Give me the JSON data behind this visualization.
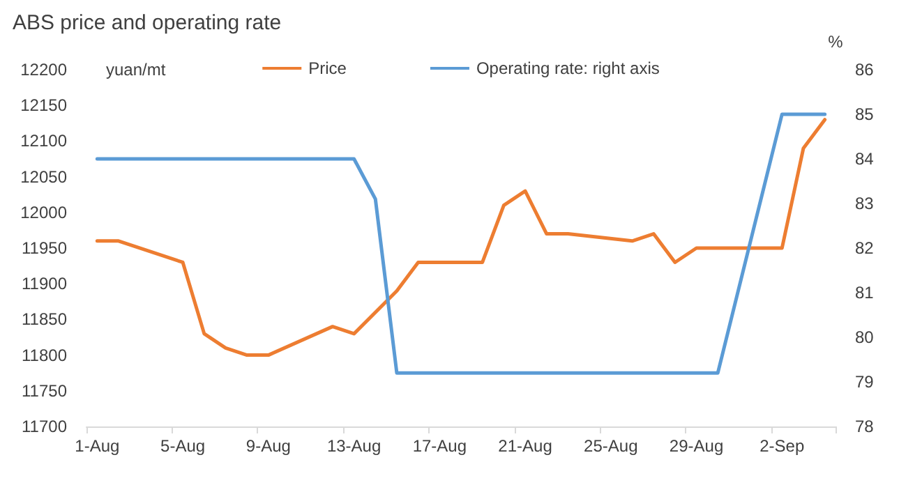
{
  "chart_data": {
    "type": "line",
    "title": "ABS price and operating rate",
    "ylabel": "yuan/mt",
    "y2label": "%",
    "categories": [
      "1-Aug",
      null,
      null,
      null,
      "5-Aug",
      null,
      null,
      null,
      "9-Aug",
      null,
      null,
      null,
      "13-Aug",
      null,
      null,
      null,
      "17-Aug",
      null,
      null,
      null,
      "21-Aug",
      null,
      null,
      null,
      "25-Aug",
      null,
      null,
      null,
      "29-Aug",
      null,
      null,
      null,
      "2-Sep",
      null,
      null
    ],
    "series": [
      {
        "name": "Price",
        "color": "#ed7d31",
        "values": [
          11960,
          11960,
          null,
          null,
          11930,
          11830,
          11810,
          11800,
          11800,
          null,
          null,
          11840,
          11830,
          null,
          11890,
          11930,
          null,
          null,
          11930,
          12010,
          12030,
          11970,
          11970,
          null,
          null,
          11960,
          11970,
          11930,
          11950,
          null,
          null,
          null,
          11950,
          12090,
          12130
        ]
      },
      {
        "name": "Operating rate: right axis",
        "color": "#5b9bd5",
        "axis": "y2",
        "values": [
          84,
          null,
          null,
          null,
          null,
          null,
          null,
          null,
          null,
          null,
          null,
          null,
          84,
          83.1,
          79.2,
          null,
          null,
          null,
          null,
          null,
          null,
          null,
          null,
          null,
          null,
          null,
          null,
          null,
          null,
          79.2,
          null,
          null,
          85,
          null,
          85
        ]
      }
    ],
    "ylim": [
      11700,
      12200
    ],
    "yticks": [
      11700,
      11750,
      11800,
      11850,
      11900,
      11950,
      12000,
      12050,
      12100,
      12150,
      12200
    ],
    "y2lim": [
      78,
      86
    ],
    "y2ticks": [
      78,
      79,
      80,
      81,
      82,
      83,
      84,
      85,
      86
    ],
    "legend": "top",
    "grid": false,
    "marker": "none",
    "line_style": "solid"
  }
}
